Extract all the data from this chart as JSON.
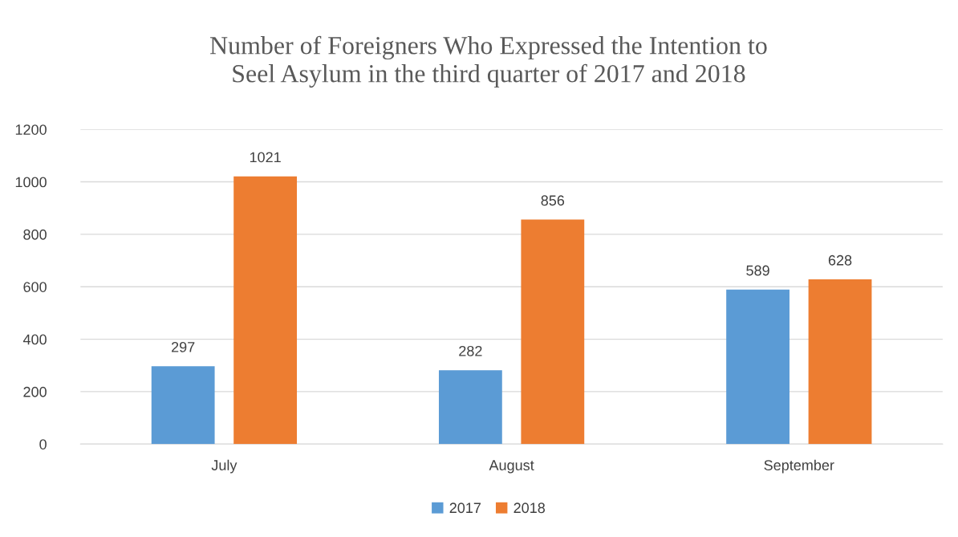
{
  "chart_data": {
    "type": "bar",
    "title": "Number of Foreigners Who Expressed the Intention to\nSeel Asylum in the third quarter of 2017 and 2018",
    "categories": [
      "July",
      "August",
      "September"
    ],
    "series": [
      {
        "name": "2017",
        "color": "#5b9bd5",
        "values": [
          297,
          282,
          589
        ]
      },
      {
        "name": "2018",
        "color": "#ed7d31",
        "values": [
          1021,
          856,
          628
        ]
      }
    ],
    "ylim": [
      0,
      1200
    ],
    "yticks": [
      0,
      200,
      400,
      600,
      800,
      1000,
      1200
    ],
    "grid": "y",
    "legend": "bottom",
    "data_labels": true
  }
}
